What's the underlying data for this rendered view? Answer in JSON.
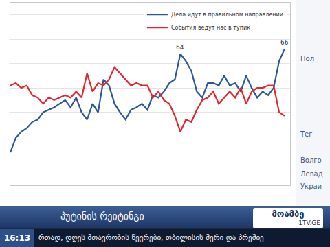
{
  "chart_data": {
    "type": "line",
    "categories": [
      null,
      null,
      null,
      null,
      null,
      null,
      null,
      null,
      null,
      null,
      null,
      null,
      null,
      null,
      null,
      null,
      null,
      null,
      null,
      null,
      null,
      null,
      null,
      null,
      null,
      null,
      null,
      null,
      null,
      null,
      null,
      null,
      null,
      null,
      null,
      null,
      null,
      null,
      null,
      null,
      null,
      null,
      null,
      null,
      null,
      null,
      null,
      null,
      null,
      null,
      null
    ],
    "series": [
      {
        "name": "Дела идут в правильном направлении",
        "color": "#2b5797",
        "values": [
          23.5,
          29.5,
          32,
          33.5,
          36,
          37,
          40,
          41,
          42,
          43.5,
          45,
          42,
          46,
          40,
          37,
          43.5,
          40,
          53.5,
          51,
          43.5,
          40,
          37,
          41,
          42,
          43.5,
          41,
          47,
          46,
          48.5,
          52,
          53.5,
          64,
          61,
          57,
          48.5,
          46,
          52,
          52,
          51,
          55,
          51,
          52,
          48.5,
          55,
          50,
          46,
          48.5,
          47,
          50,
          61,
          66
        ]
      },
      {
        "name": "События ведут нас в тупик",
        "color": "#e3262e",
        "values": [
          51,
          52,
          50,
          51,
          47,
          46,
          43.5,
          46,
          45,
          46,
          47,
          46,
          48.5,
          46,
          56,
          48.5,
          52,
          51,
          53.5,
          58.5,
          56,
          53.5,
          51,
          52,
          51,
          51,
          46,
          48.5,
          45,
          43.5,
          38.5,
          32,
          37,
          36,
          41,
          45,
          46,
          48.5,
          43.5,
          46,
          48.5,
          46,
          50,
          43.5,
          48.5,
          50,
          50,
          51,
          51,
          40,
          38.5
        ]
      }
    ],
    "ylim": [
      10,
      85
    ],
    "yticks": [
      20,
      30,
      40,
      50,
      60,
      70,
      80
    ],
    "grid": true,
    "legend": "upper right",
    "tick_labels": false,
    "annotations": [
      {
        "text": "64",
        "x": 31,
        "y": 64
      },
      {
        "text": "66",
        "x": 50,
        "y": 66
      }
    ]
  },
  "broadcast": {
    "sidebar": [
      "Пол",
      "Тег",
      "Волго",
      "Левад",
      "Украи"
    ],
    "caption": "პუტინის რეიტინგი",
    "logo": "მოამბე",
    "site": "1TV.GE",
    "clock": "16:13",
    "ticker": "რთად, დღეს მთავრობის წევრები, თბილისის მერი და პრემიე"
  }
}
